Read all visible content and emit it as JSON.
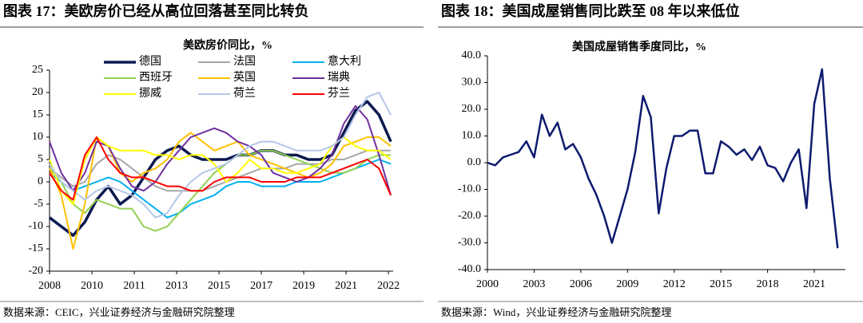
{
  "chart_data": [
    {
      "type": "line",
      "figure_title": "图表 17：美欧房价已经从高位回落甚至同比转负",
      "title": "美欧房价同比，%",
      "source": "数据来源：CEIC，兴业证券经济与金融研究院整理",
      "x": [
        2008,
        2008.5,
        2009,
        2009.5,
        2010,
        2010.5,
        2011,
        2011.5,
        2012,
        2012.5,
        2013,
        2013.5,
        2014,
        2014.5,
        2015,
        2015.5,
        2016,
        2016.5,
        2017,
        2017.5,
        2018,
        2018.5,
        2019,
        2019.5,
        2020,
        2020.5,
        2021,
        2021.5,
        2022,
        2022.5
      ],
      "xlim": [
        2008,
        2022.6
      ],
      "xticks": [
        {
          "value": 2008,
          "label": "2008"
        },
        {
          "value": 2009.8,
          "label": "2010"
        },
        {
          "value": 2011.6,
          "label": "2011"
        },
        {
          "value": 2013.4,
          "label": "2013"
        },
        {
          "value": 2015.2,
          "label": "2015"
        },
        {
          "value": 2017.0,
          "label": "2017"
        },
        {
          "value": 2018.8,
          "label": "2019"
        },
        {
          "value": 2020.6,
          "label": "2021"
        },
        {
          "value": 2022.4,
          "label": "2022"
        }
      ],
      "ylim": [
        -20,
        25
      ],
      "yticks": [
        -20,
        -15,
        -10,
        -5,
        0,
        5,
        10,
        15,
        20,
        25
      ],
      "series": [
        {
          "name": "德国",
          "color": "#0d1a50",
          "width": 3.5,
          "values": [
            -8,
            -10,
            -12,
            -9,
            -4,
            -1,
            -5,
            -3,
            1,
            5,
            7,
            8,
            6,
            5,
            5,
            5,
            6,
            6,
            7,
            7,
            6,
            6,
            5,
            5,
            6,
            11,
            16,
            18,
            15,
            9
          ]
        },
        {
          "name": "法国",
          "color": "#a6a6a6",
          "width": 2,
          "values": [
            3,
            1,
            -1,
            0,
            4,
            6,
            5,
            3,
            1,
            -1,
            -2,
            -2,
            -2,
            -2,
            -1,
            0,
            1,
            2,
            3,
            3,
            3,
            4,
            4,
            4,
            5,
            5,
            6,
            7,
            7,
            7
          ]
        },
        {
          "name": "意大利",
          "color": "#00b0f0",
          "width": 2,
          "values": [
            2,
            0,
            -2,
            -1,
            0,
            1,
            0,
            -2,
            -4,
            -6,
            -8,
            -7,
            -5,
            -4,
            -3,
            -1,
            0,
            0,
            -1,
            -1,
            -1,
            0,
            0,
            0,
            1,
            2,
            3,
            4,
            5,
            4
          ]
        },
        {
          "name": "西班牙",
          "color": "#92d050",
          "width": 2,
          "values": [
            3,
            0,
            -5,
            -7,
            -4,
            -5,
            -6,
            -6,
            -10,
            -11,
            -10,
            -7,
            -4,
            -1,
            2,
            4,
            6,
            6,
            7,
            7,
            6,
            5,
            4,
            3,
            2,
            2,
            3,
            5,
            6,
            6
          ]
        },
        {
          "name": "英国",
          "color": "#ffc000",
          "width": 2,
          "values": [
            3,
            -3,
            -15,
            -5,
            10,
            8,
            2,
            0,
            2,
            3,
            5,
            9,
            11,
            9,
            7,
            8,
            9,
            6,
            5,
            4,
            3,
            2,
            1,
            2,
            4,
            8,
            9,
            10,
            10,
            8
          ]
        },
        {
          "name": "瑞典",
          "color": "#7030a0",
          "width": 2,
          "values": [
            9,
            2,
            -2,
            2,
            9,
            8,
            3,
            -1,
            -2,
            0,
            4,
            7,
            10,
            11,
            12,
            11,
            9,
            8,
            6,
            2,
            1,
            0,
            1,
            3,
            6,
            13,
            17,
            14,
            6,
            -3
          ]
        },
        {
          "name": "挪威",
          "color": "#ffff00",
          "width": 2,
          "values": [
            5,
            -2,
            -5,
            5,
            10,
            8,
            7,
            7,
            7,
            6,
            6,
            5,
            6,
            6,
            4,
            0,
            2,
            5,
            3,
            3,
            2,
            2,
            3,
            4,
            8,
            10,
            8,
            7,
            7,
            5
          ]
        },
        {
          "name": "荷兰",
          "color": "#b4c7e7",
          "width": 2,
          "values": [
            4,
            0,
            -2,
            -4,
            -2,
            -1,
            -2,
            -3,
            -5,
            -8,
            -7,
            -3,
            0,
            2,
            3,
            4,
            6,
            8,
            9,
            9,
            8,
            7,
            7,
            7,
            8,
            10,
            15,
            19,
            20,
            15
          ]
        },
        {
          "name": "芬兰",
          "color": "#ff0000",
          "width": 2,
          "values": [
            2,
            -2,
            -4,
            6,
            10,
            5,
            2,
            1,
            1,
            0,
            -1,
            -1,
            -2,
            -2,
            0,
            1,
            1,
            1,
            0,
            0,
            0,
            1,
            1,
            1,
            2,
            3,
            4,
            5,
            3,
            -3
          ]
        }
      ]
    },
    {
      "type": "line",
      "figure_title": "图表 18：美国成屋销售同比跌至 08 年以来低位",
      "title": "美国成屋销售季度同比，%",
      "source": "数据来源：Wind，兴业证券经济与金融研究院整理",
      "x": [
        2000,
        2000.5,
        2001,
        2001.5,
        2002,
        2002.5,
        2003,
        2003.5,
        2004,
        2004.5,
        2005,
        2005.5,
        2006,
        2006.5,
        2007,
        2007.5,
        2008,
        2008.5,
        2009,
        2009.5,
        2010,
        2010.5,
        2011,
        2011.5,
        2012,
        2012.5,
        2013,
        2013.5,
        2014,
        2014.5,
        2015,
        2015.5,
        2016,
        2016.5,
        2017,
        2017.5,
        2018,
        2018.5,
        2019,
        2019.5,
        2020,
        2020.5,
        2021,
        2021.5,
        2022,
        2022.5
      ],
      "xlim": [
        2000,
        2023
      ],
      "xticks": [
        2000,
        2003,
        2006,
        2009,
        2012,
        2015,
        2018,
        2021
      ],
      "ylim": [
        -40,
        40
      ],
      "yticks": [
        {
          "value": -40,
          "label": "-40.0"
        },
        {
          "value": -30,
          "label": "-30.0"
        },
        {
          "value": -20,
          "label": "-20.0"
        },
        {
          "value": -10,
          "label": "-10.0"
        },
        {
          "value": 0,
          "label": "0.0"
        },
        {
          "value": 10,
          "label": "10.0"
        },
        {
          "value": 20,
          "label": "20.0"
        },
        {
          "value": 30,
          "label": "30.0"
        },
        {
          "value": 40,
          "label": "40.0"
        }
      ],
      "color": "#0d1a6e",
      "values": [
        0,
        -1,
        2,
        3,
        4,
        8,
        2,
        18,
        10,
        15,
        5,
        7,
        2,
        -6,
        -12,
        -20,
        -30,
        -20,
        -10,
        4,
        25,
        17,
        -19,
        -2,
        10,
        10,
        12,
        12,
        -4,
        -4,
        8,
        6,
        3,
        5,
        1,
        6,
        -1,
        -2,
        -7,
        0,
        5,
        -17,
        22,
        35,
        -6,
        -32
      ]
    }
  ]
}
